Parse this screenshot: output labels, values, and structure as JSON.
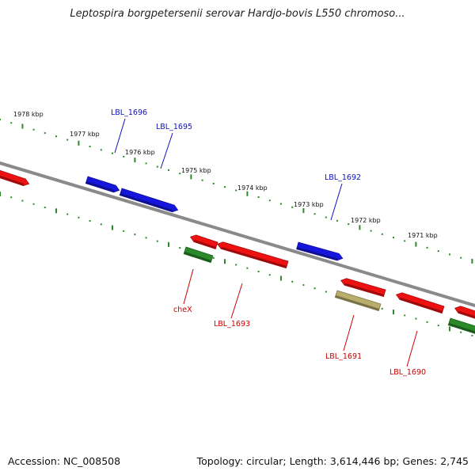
{
  "title": "Leptospira borgpetersenii serovar Hardjo-bovis L550 chromoso...",
  "footer": {
    "accession": "Accession: NC_008508",
    "summary": "Topology: circular; Length: 3,614,446 bp; Genes: 2,745"
  },
  "colors": {
    "backbone": "#8a8a8a",
    "tick": "#2a8a2a",
    "label_blue": "#1010c0",
    "label_red": "#cc0000"
  },
  "ticks": [
    "1978 kbp",
    "1977 kbp",
    "1976 kbp",
    "1975 kbp",
    "1974 kbp",
    "1973 kbp",
    "1972 kbp",
    "1971 kbp"
  ],
  "genes": [
    {
      "id": "left-edge",
      "label": "",
      "color": "#ee1111",
      "strand": "plus"
    },
    {
      "id": "LBL_1696",
      "label": "LBL_1696",
      "color": "#1515dd",
      "strand": "plus"
    },
    {
      "id": "LBL_1695",
      "label": "LBL_1695",
      "color": "#1515dd",
      "strand": "plus"
    },
    {
      "id": "LBL_1692",
      "label": "LBL_1692",
      "color": "#1515dd",
      "strand": "plus"
    },
    {
      "id": "cheX-red",
      "label": "",
      "color": "#ee1111",
      "strand": "minus"
    },
    {
      "id": "cheX",
      "label": "cheX",
      "color": "#2a8a2a",
      "strand": "minus"
    },
    {
      "id": "LBL_1693",
      "label": "LBL_1693",
      "color": "#ee1111",
      "strand": "minus"
    },
    {
      "id": "red-1691",
      "label": "",
      "color": "#ee1111",
      "strand": "minus"
    },
    {
      "id": "LBL_1691",
      "label": "LBL_1691",
      "color": "#b8ad6a",
      "strand": "minus"
    },
    {
      "id": "LBL_1690",
      "label": "LBL_1690",
      "color": "#ee1111",
      "strand": "minus"
    },
    {
      "id": "right-red",
      "label": "",
      "color": "#ee1111",
      "strand": "minus"
    },
    {
      "id": "right-green",
      "label": "",
      "color": "#2a8a2a",
      "strand": "minus"
    }
  ]
}
